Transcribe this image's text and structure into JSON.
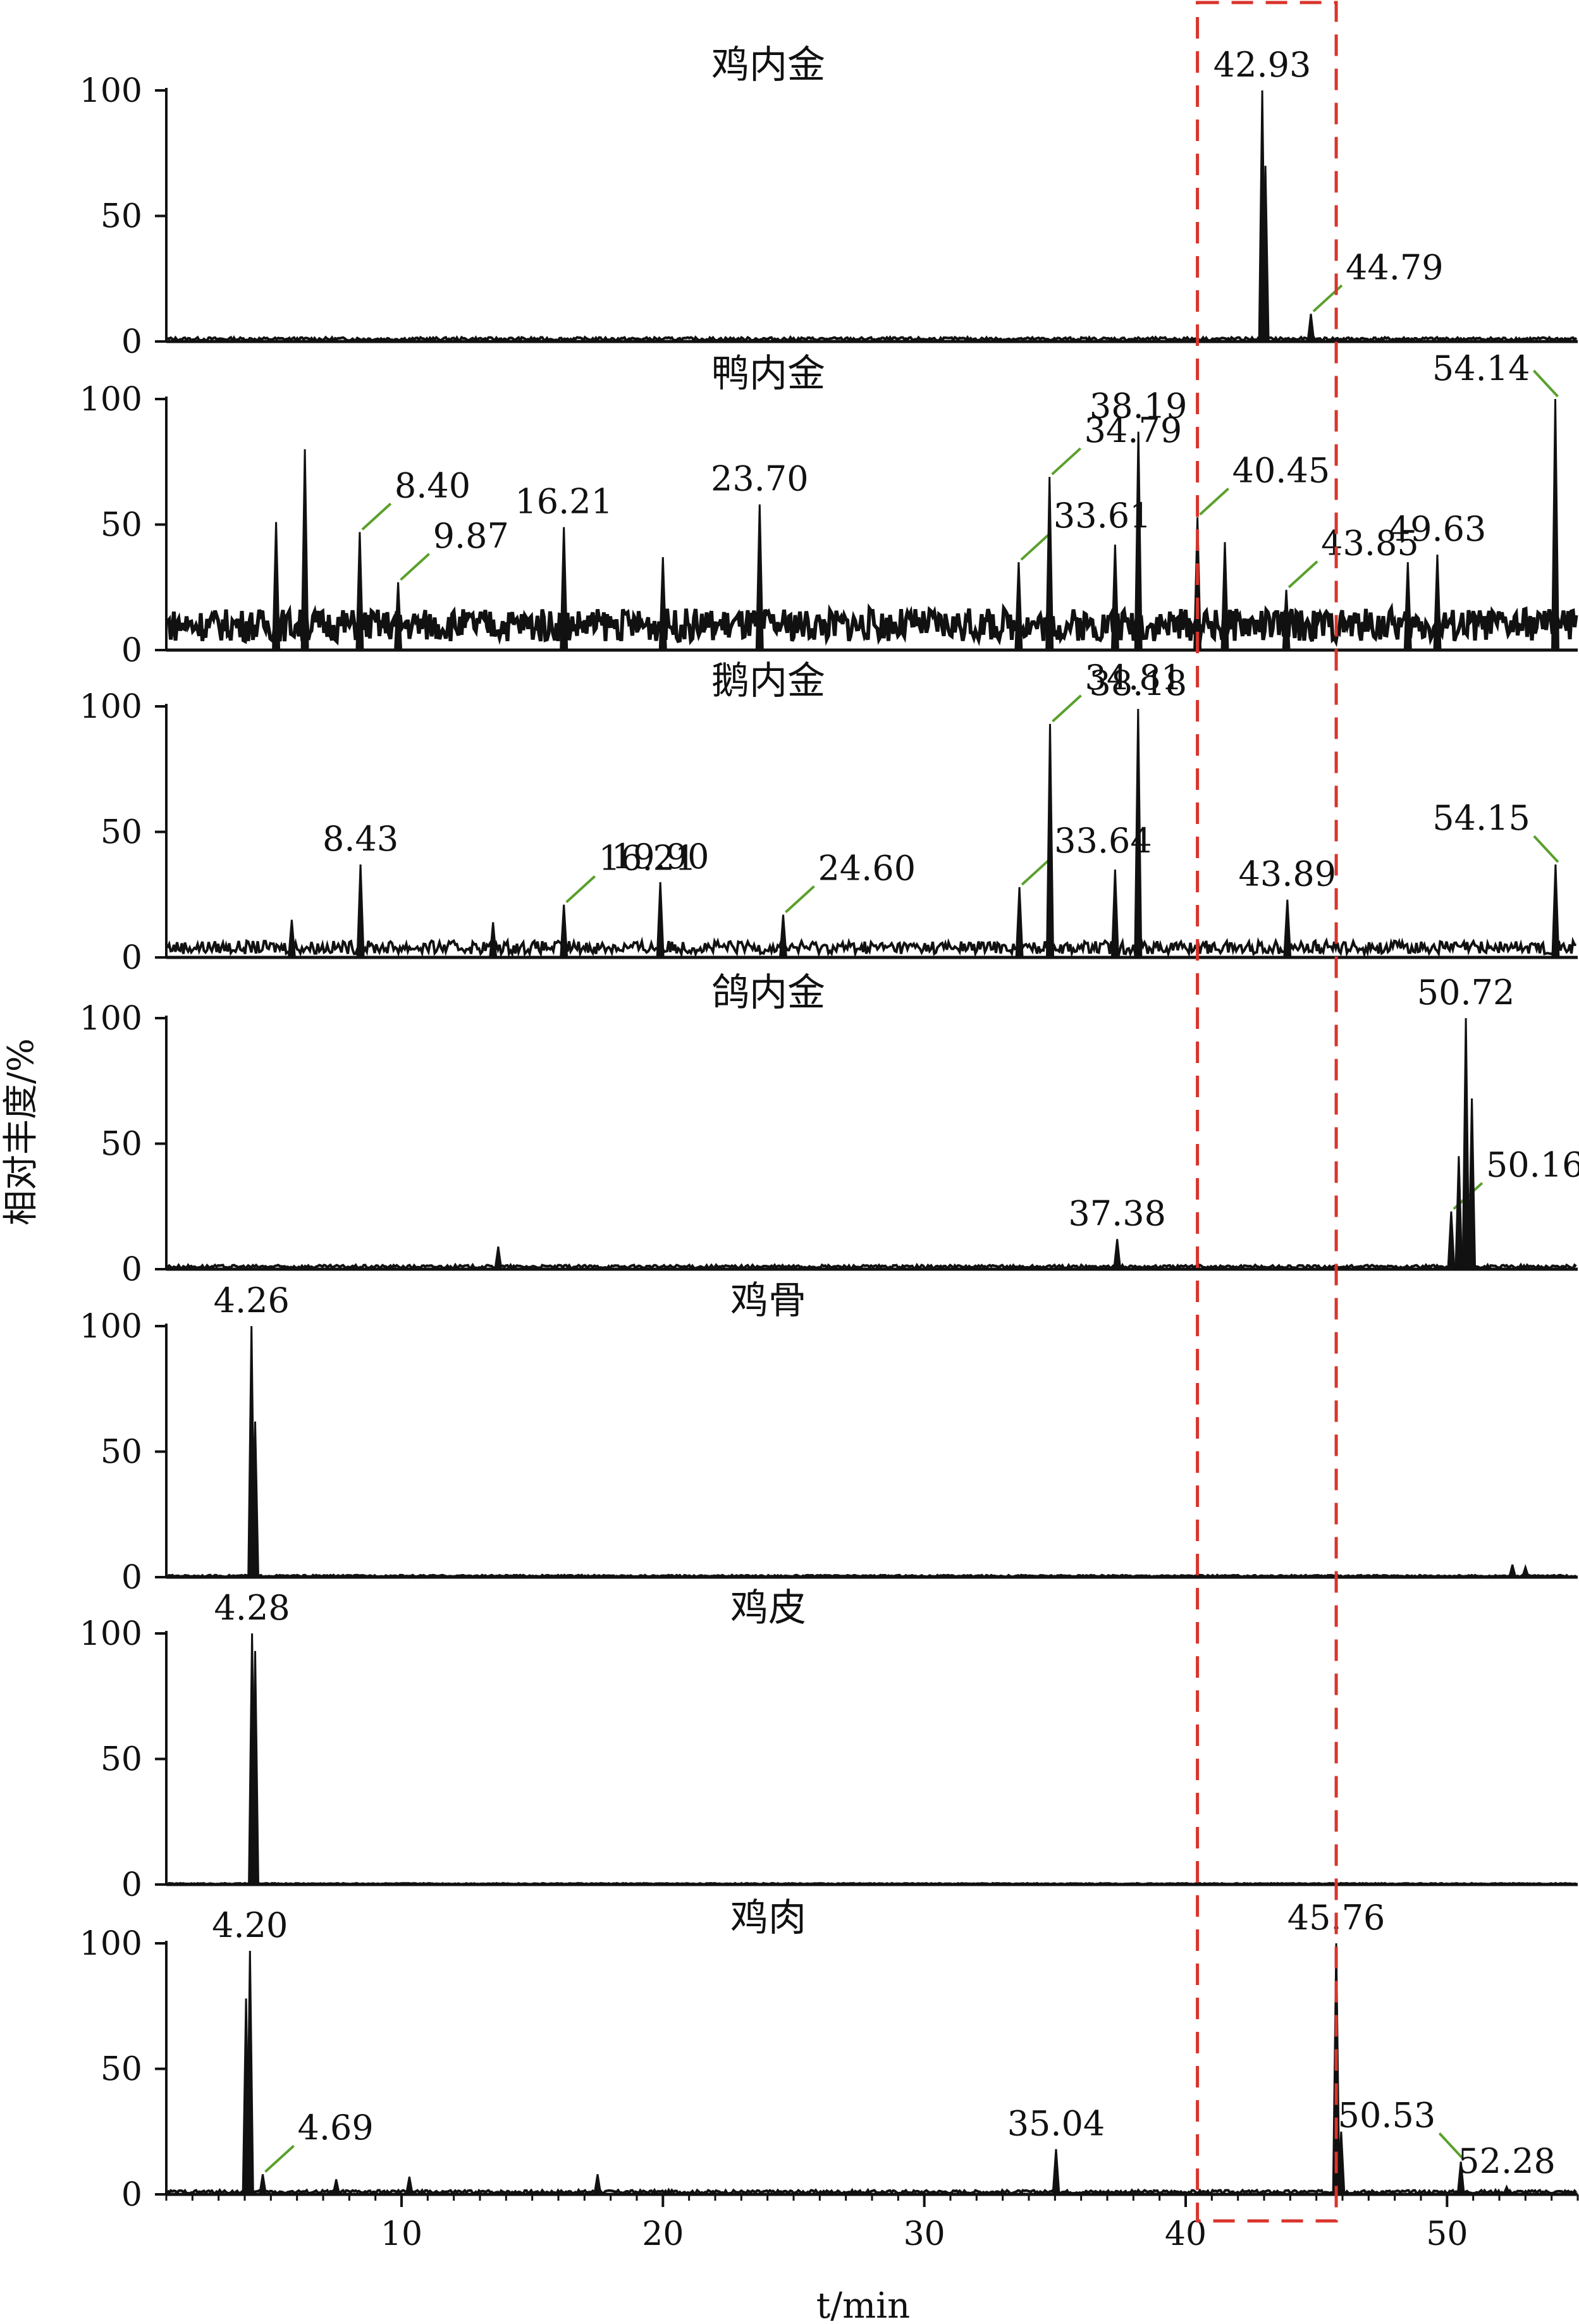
{
  "chart_data": {
    "type": "line",
    "ylabel": "相对丰度/%",
    "xlabel": "t/min",
    "xlim": [
      1,
      55
    ],
    "x_ticks": [
      10,
      20,
      30,
      40,
      50
    ],
    "y_ticks": [
      0,
      50,
      100
    ],
    "ylim": [
      0,
      100
    ],
    "grid": false,
    "highlight_box": {
      "x_from": 40.45,
      "x_to": 45.76,
      "color": "#d9342b",
      "style": "dashed"
    },
    "leader_color": "#5aa02c",
    "panels": [
      {
        "name": "鸡内金",
        "peaks": [
          {
            "x": 42.93,
            "y": 100,
            "label": "42.93"
          },
          {
            "x": 43.05,
            "y": 70
          },
          {
            "x": 44.79,
            "y": 11,
            "label": "44.79",
            "leader": true
          }
        ],
        "baseline": 1
      },
      {
        "name": "鸭内金",
        "peaks": [
          {
            "x": 5.2,
            "y": 51
          },
          {
            "x": 6.3,
            "y": 80
          },
          {
            "x": 8.4,
            "y": 47,
            "label": "8.40",
            "leader": true
          },
          {
            "x": 9.87,
            "y": 27,
            "label": "9.87",
            "leader": true
          },
          {
            "x": 16.21,
            "y": 49,
            "label": "16.21"
          },
          {
            "x": 20.0,
            "y": 37
          },
          {
            "x": 23.7,
            "y": 58,
            "label": "23.70"
          },
          {
            "x": 33.61,
            "y": 35,
            "label": "33.61",
            "leader": true
          },
          {
            "x": 34.79,
            "y": 69,
            "label": "34.79",
            "leader": true
          },
          {
            "x": 37.3,
            "y": 42
          },
          {
            "x": 38.19,
            "y": 87,
            "label": "38.19"
          },
          {
            "x": 40.45,
            "y": 53,
            "label": "40.45",
            "leader": true
          },
          {
            "x": 41.5,
            "y": 43
          },
          {
            "x": 43.85,
            "y": 24,
            "label": "43.85",
            "leader": true
          },
          {
            "x": 48.5,
            "y": 35
          },
          {
            "x": 49.63,
            "y": 38,
            "label": "49.63"
          },
          {
            "x": 54.14,
            "y": 100,
            "label": "54.14",
            "leader": true
          }
        ],
        "baseline": 10
      },
      {
        "name": "鹅内金",
        "peaks": [
          {
            "x": 5.8,
            "y": 15
          },
          {
            "x": 8.43,
            "y": 37,
            "label": "8.43"
          },
          {
            "x": 13.5,
            "y": 14
          },
          {
            "x": 16.21,
            "y": 21,
            "label": "16.21",
            "leader": true
          },
          {
            "x": 19.9,
            "y": 30,
            "label": "19.90"
          },
          {
            "x": 24.6,
            "y": 17,
            "label": "24.60",
            "leader": true
          },
          {
            "x": 33.64,
            "y": 28,
            "label": "33.64",
            "leader": true
          },
          {
            "x": 34.81,
            "y": 93,
            "label": "34.81",
            "leader": true
          },
          {
            "x": 37.3,
            "y": 35
          },
          {
            "x": 38.18,
            "y": 99,
            "label": "38.18"
          },
          {
            "x": 43.89,
            "y": 23,
            "label": "43.89"
          },
          {
            "x": 54.15,
            "y": 37,
            "label": "54.15",
            "leader": true
          }
        ],
        "baseline": 4
      },
      {
        "name": "鸽内金",
        "peaks": [
          {
            "x": 13.7,
            "y": 9
          },
          {
            "x": 37.38,
            "y": 12,
            "label": "37.38"
          },
          {
            "x": 50.16,
            "y": 23,
            "label": "50.16",
            "leader": true
          },
          {
            "x": 50.45,
            "y": 45
          },
          {
            "x": 50.72,
            "y": 100,
            "label": "50.72"
          },
          {
            "x": 50.95,
            "y": 68
          }
        ],
        "baseline": 1
      },
      {
        "name": "鸡骨",
        "peaks": [
          {
            "x": 4.26,
            "y": 100,
            "label": "4.26"
          },
          {
            "x": 4.4,
            "y": 62
          },
          {
            "x": 52.5,
            "y": 5
          },
          {
            "x": 53.0,
            "y": 4
          }
        ],
        "baseline": 0.5
      },
      {
        "name": "鸡皮",
        "peaks": [
          {
            "x": 4.28,
            "y": 100,
            "label": "4.28"
          },
          {
            "x": 4.4,
            "y": 93
          }
        ],
        "baseline": 0.3
      },
      {
        "name": "鸡肉",
        "peaks": [
          {
            "x": 4.05,
            "y": 78
          },
          {
            "x": 4.2,
            "y": 97,
            "label": "4.20"
          },
          {
            "x": 4.69,
            "y": 8,
            "label": "4.69",
            "leader": true
          },
          {
            "x": 7.5,
            "y": 6
          },
          {
            "x": 10.3,
            "y": 7
          },
          {
            "x": 17.5,
            "y": 8
          },
          {
            "x": 35.04,
            "y": 18,
            "label": "35.04"
          },
          {
            "x": 45.76,
            "y": 100,
            "label": "45.76"
          },
          {
            "x": 45.95,
            "y": 25
          },
          {
            "x": 50.53,
            "y": 13,
            "label": "50.53",
            "leader": true
          },
          {
            "x": 52.28,
            "y": 3,
            "label": "52.28"
          }
        ],
        "baseline": 1
      }
    ]
  }
}
